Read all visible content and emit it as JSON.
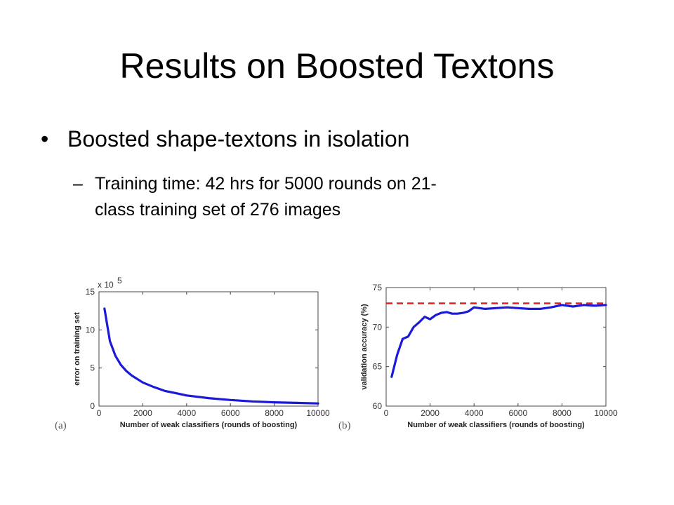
{
  "slide": {
    "title": "Results on Boosted Textons",
    "bullet": "Boosted shape-textons in isolation",
    "sub_dash": "–",
    "sub_line1": "Training time: 42 hrs for 5000 rounds on 21-",
    "sub_line2": "class training set of 276 images"
  },
  "colors": {
    "series": "#1a1ad8",
    "reference": "#e02020",
    "axis": "#444444"
  },
  "chart_data": [
    {
      "type": "line",
      "panel_label": "(a)",
      "xlabel": "Number of weak classifiers (rounds of boosting)",
      "ylabel": "error on training set",
      "y_multiplier": "x 10",
      "y_multiplier_exp": "5",
      "xlim": [
        0,
        10000
      ],
      "ylim": [
        0,
        15
      ],
      "xticks": [
        0,
        2000,
        4000,
        6000,
        8000,
        10000
      ],
      "yticks": [
        0,
        5,
        10,
        15
      ],
      "series": [
        {
          "x": [
            250,
            500,
            750,
            1000,
            1250,
            1500,
            2000,
            2500,
            3000,
            3500,
            4000,
            5000,
            6000,
            7000,
            8000,
            9000,
            10000
          ],
          "y": [
            12.8,
            8.5,
            6.6,
            5.4,
            4.6,
            4.0,
            3.1,
            2.5,
            2.0,
            1.7,
            1.4,
            1.05,
            0.8,
            0.62,
            0.5,
            0.42,
            0.35
          ]
        }
      ]
    },
    {
      "type": "line",
      "panel_label": "(b)",
      "xlabel": "Number of weak classifiers (rounds of boosting)",
      "ylabel": "validation accuracy (%)",
      "xlim": [
        0,
        10000
      ],
      "ylim": [
        60,
        75
      ],
      "xticks": [
        0,
        2000,
        4000,
        6000,
        8000,
        10000
      ],
      "xtick_labels": [
        "0",
        "2000",
        "4000",
        "6000",
        "8000",
        "10000"
      ],
      "yticks": [
        60,
        65,
        70,
        75
      ],
      "reference_line": {
        "y": 73,
        "style": "dashed"
      },
      "series": [
        {
          "x": [
            250,
            500,
            750,
            1000,
            1250,
            1500,
            1750,
            2000,
            2250,
            2500,
            2750,
            3000,
            3250,
            3500,
            3750,
            4000,
            4500,
            5000,
            5500,
            6000,
            6500,
            7000,
            7500,
            8000,
            8500,
            9000,
            9500,
            10000
          ],
          "y": [
            63.7,
            66.5,
            68.5,
            68.8,
            70.0,
            70.6,
            71.3,
            71.0,
            71.5,
            71.8,
            71.9,
            71.7,
            71.7,
            71.8,
            72.0,
            72.5,
            72.3,
            72.4,
            72.5,
            72.4,
            72.3,
            72.3,
            72.5,
            72.8,
            72.6,
            72.8,
            72.7,
            72.8
          ]
        }
      ]
    }
  ]
}
